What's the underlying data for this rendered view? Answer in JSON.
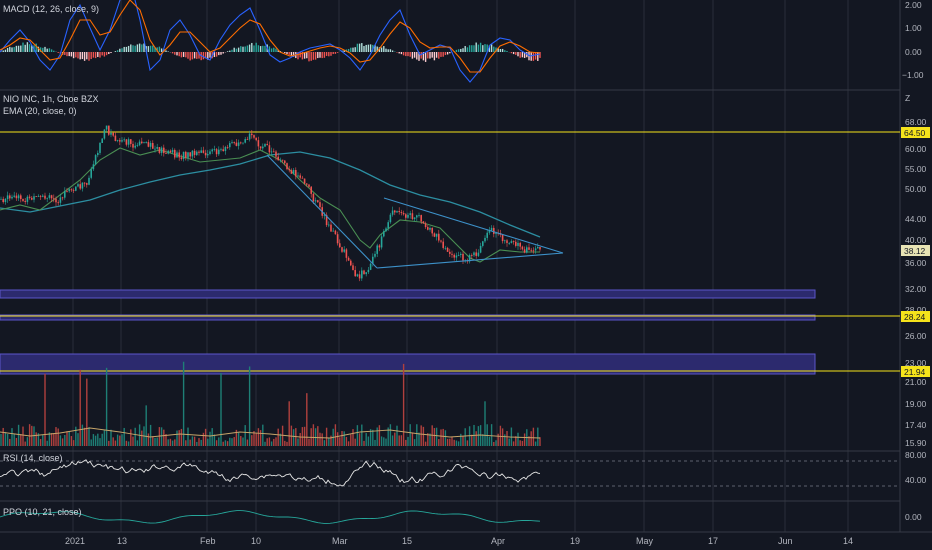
{
  "panes": {
    "macd": {
      "legend": "MACD (12, 26, close, 9)",
      "ticks": [
        "2.00",
        "1.00",
        "0.00",
        "−1.00"
      ]
    },
    "price": {
      "symbol_legend": "NIO INC, 1h, Cboe BZX",
      "ema_legend": "EMA (20, close, 0)",
      "unit_mark": "Z",
      "ticks": [
        "68.00",
        "60.00",
        "55.00",
        "50.00",
        "44.00",
        "40.00",
        "36.00",
        "32.00",
        "28.00",
        "26.00",
        "23.00",
        "21.00",
        "19.00",
        "17.40",
        "15.90"
      ],
      "tags": [
        {
          "name": "tag-resistance",
          "text": "64.50",
          "color": "#f5e31b"
        },
        {
          "name": "tag-last-price",
          "text": "38.12",
          "color": "#e8e4b5"
        },
        {
          "name": "tag-support-1",
          "text": "28.24",
          "color": "#f5e31b"
        },
        {
          "name": "tag-support-2",
          "text": "21.94",
          "color": "#f5e31b"
        }
      ]
    },
    "rsi": {
      "legend": "RSI (14, close)",
      "ticks": [
        "80.00",
        "40.00"
      ]
    },
    "ppo": {
      "legend": "PPO (10, 21, close)",
      "ticks": [
        "0.00"
      ]
    }
  },
  "time_axis": [
    "2021",
    "13",
    "Feb",
    "10",
    "Mar",
    "15",
    "Apr",
    "19",
    "May",
    "17",
    "Jun",
    "14"
  ],
  "colors": {
    "background": "#131722",
    "grid": "#2a2e39",
    "up": "#26a69a",
    "down": "#ef5350",
    "yellow_line": "#f5e31b",
    "zone_fill": "#2c2a6e",
    "zone_border": "#5b55c9",
    "ema": "#4a8f53",
    "ma_long": "#2c8ea1",
    "triangle": "#3d91c9",
    "macd_line": "#2962ff",
    "signal_line": "#ff6d00",
    "rsi_line": "#e6e6e6",
    "ppo_line": "#26a69a"
  },
  "chart_data": {
    "type": "candlestick",
    "symbol": "NIO INC",
    "interval": "1h",
    "exchange": "Cboe BZX",
    "horizontal_levels": [
      64.5,
      28.24,
      21.94
    ],
    "last_price": 38.12,
    "zones": [
      [
        31.2,
        32.2
      ],
      [
        27.9,
        28.24
      ],
      [
        21.94,
        24.0
      ]
    ],
    "indicators": [
      "MACD (12, 26, close, 9)",
      "EMA (20, close, 0)",
      "RSI (14, close)",
      "PPO (10, 21, close)"
    ],
    "price_path": [
      {
        "x": "2021-01-01",
        "y": 47.8
      },
      {
        "x": "2021-01-05",
        "y": 50.5
      },
      {
        "x": "2021-01-07",
        "y": 51.0
      },
      {
        "x": "2021-01-08",
        "y": 55.5
      },
      {
        "x": "2021-01-11",
        "y": 66.0
      },
      {
        "x": "2021-01-13",
        "y": 62.0
      },
      {
        "x": "2021-01-20",
        "y": 60.5
      },
      {
        "x": "2021-01-27",
        "y": 58.0
      },
      {
        "x": "2021-02-03",
        "y": 59.0
      },
      {
        "x": "2021-02-10",
        "y": 63.5
      },
      {
        "x": "2021-02-16",
        "y": 58.0
      },
      {
        "x": "2021-02-22",
        "y": 51.0
      },
      {
        "x": "2021-02-26",
        "y": 44.0
      },
      {
        "x": "2021-03-05",
        "y": 33.5
      },
      {
        "x": "2021-03-08",
        "y": 36.0
      },
      {
        "x": "2021-03-12",
        "y": 45.0
      },
      {
        "x": "2021-03-18",
        "y": 44.0
      },
      {
        "x": "2021-03-25",
        "y": 37.0
      },
      {
        "x": "2021-03-29",
        "y": 36.5
      },
      {
        "x": "2021-04-02",
        "y": 41.5
      },
      {
        "x": "2021-04-09",
        "y": 38.12
      }
    ]
  }
}
